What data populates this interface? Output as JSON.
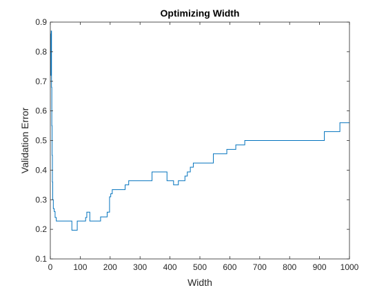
{
  "chart_data": {
    "type": "line",
    "title": "Optimizing Width",
    "xlabel": "Width",
    "ylabel": "Validation Error",
    "xlim": [
      0,
      1000
    ],
    "ylim": [
      0.1,
      0.9
    ],
    "xticks": [
      0,
      100,
      200,
      300,
      400,
      500,
      600,
      700,
      800,
      900,
      1000
    ],
    "yticks": [
      0.1,
      0.2,
      0.3,
      0.4,
      0.5,
      0.6,
      0.7,
      0.8,
      0.9
    ],
    "xtick_labels": [
      "0",
      "100",
      "200",
      "300",
      "400",
      "500",
      "600",
      "700",
      "800",
      "900",
      "1000"
    ],
    "ytick_labels": [
      "0.1",
      "0.2",
      "0.3",
      "0.4",
      "0.5",
      "0.6",
      "0.7",
      "0.8",
      "0.9"
    ],
    "grid": false,
    "box": true,
    "series": [
      {
        "color": "#0072BD",
        "step": true,
        "points": [
          [
            1,
            0.86
          ],
          [
            2,
            0.72
          ],
          [
            3,
            0.87
          ],
          [
            4,
            0.68
          ],
          [
            5,
            0.55
          ],
          [
            6,
            0.45
          ],
          [
            7,
            0.36
          ],
          [
            8,
            0.3
          ],
          [
            10,
            0.27
          ],
          [
            13,
            0.26
          ],
          [
            16,
            0.24
          ],
          [
            20,
            0.228
          ],
          [
            72,
            0.197
          ],
          [
            90,
            0.228
          ],
          [
            100,
            0.228
          ],
          [
            110,
            0.228
          ],
          [
            118,
            0.24
          ],
          [
            122,
            0.258
          ],
          [
            132,
            0.228
          ],
          [
            168,
            0.242
          ],
          [
            190,
            0.258
          ],
          [
            198,
            0.31
          ],
          [
            202,
            0.32
          ],
          [
            207,
            0.334
          ],
          [
            240,
            0.334
          ],
          [
            250,
            0.35
          ],
          [
            262,
            0.364
          ],
          [
            340,
            0.394
          ],
          [
            390,
            0.364
          ],
          [
            412,
            0.35
          ],
          [
            428,
            0.364
          ],
          [
            450,
            0.38
          ],
          [
            458,
            0.394
          ],
          [
            468,
            0.41
          ],
          [
            478,
            0.424
          ],
          [
            545,
            0.455
          ],
          [
            590,
            0.47
          ],
          [
            620,
            0.485
          ],
          [
            650,
            0.5
          ],
          [
            916,
            0.53
          ],
          [
            968,
            0.56
          ],
          [
            1000,
            0.56
          ]
        ]
      }
    ]
  }
}
